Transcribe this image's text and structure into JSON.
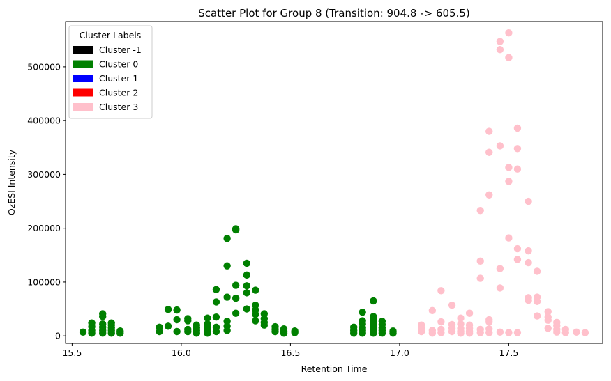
{
  "chart_data": {
    "type": "scatter",
    "title": "Scatter Plot for Group 8 (Transition: 904.8 -> 605.5)",
    "xlabel": "Retention Time",
    "ylabel": "OzESI Intensity",
    "xlim": [
      15.47,
      17.93
    ],
    "ylim": [
      -14000,
      584000
    ],
    "xticks": [
      15.5,
      16.0,
      16.5,
      17.0,
      17.5
    ],
    "xtick_labels": [
      "15.5",
      "16.0",
      "16.5",
      "17.0",
      "17.5"
    ],
    "yticks": [
      0,
      100000,
      200000,
      300000,
      400000,
      500000
    ],
    "ytick_labels": [
      "0",
      "100000",
      "200000",
      "300000",
      "400000",
      "500000"
    ],
    "grid": false,
    "legend": {
      "title": "Cluster Labels",
      "placement": "top-left",
      "entries": [
        {
          "label": "Cluster -1",
          "color": "#000000"
        },
        {
          "label": "Cluster 0",
          "color": "#008000"
        },
        {
          "label": "Cluster 1",
          "color": "#0000ff"
        },
        {
          "label": "Cluster 2",
          "color": "#ff0000"
        },
        {
          "label": "Cluster 3",
          "color": "#ffc0cb"
        }
      ]
    },
    "series": [
      {
        "color": "#008000",
        "points": [
          [
            15.55,
            7000
          ],
          [
            15.59,
            5000
          ],
          [
            15.59,
            10000
          ],
          [
            15.59,
            17000
          ],
          [
            15.59,
            24000
          ],
          [
            15.64,
            5000
          ],
          [
            15.64,
            10000
          ],
          [
            15.64,
            16000
          ],
          [
            15.64,
            22000
          ],
          [
            15.64,
            36000
          ],
          [
            15.64,
            41000
          ],
          [
            15.68,
            5000
          ],
          [
            15.68,
            10000
          ],
          [
            15.68,
            15000
          ],
          [
            15.68,
            20000
          ],
          [
            15.68,
            24000
          ],
          [
            15.72,
            5000
          ],
          [
            15.72,
            9000
          ],
          [
            15.9,
            8000
          ],
          [
            15.9,
            16000
          ],
          [
            15.94,
            18000
          ],
          [
            15.94,
            49000
          ],
          [
            15.98,
            8000
          ],
          [
            15.98,
            30000
          ],
          [
            15.98,
            48000
          ],
          [
            16.03,
            8000
          ],
          [
            16.03,
            12000
          ],
          [
            16.03,
            28000
          ],
          [
            16.03,
            32000
          ],
          [
            16.07,
            5000
          ],
          [
            16.07,
            10000
          ],
          [
            16.07,
            15000
          ],
          [
            16.07,
            20000
          ],
          [
            16.12,
            5000
          ],
          [
            16.12,
            10000
          ],
          [
            16.12,
            16000
          ],
          [
            16.12,
            22000
          ],
          [
            16.12,
            33000
          ],
          [
            16.16,
            8000
          ],
          [
            16.16,
            16000
          ],
          [
            16.16,
            35000
          ],
          [
            16.16,
            63000
          ],
          [
            16.16,
            86000
          ],
          [
            16.21,
            10000
          ],
          [
            16.21,
            18000
          ],
          [
            16.21,
            27000
          ],
          [
            16.21,
            72000
          ],
          [
            16.21,
            130000
          ],
          [
            16.21,
            181000
          ],
          [
            16.25,
            42000
          ],
          [
            16.25,
            70000
          ],
          [
            16.25,
            94000
          ],
          [
            16.25,
            197000
          ],
          [
            16.25,
            199000
          ],
          [
            16.3,
            50000
          ],
          [
            16.3,
            80000
          ],
          [
            16.3,
            93000
          ],
          [
            16.3,
            113000
          ],
          [
            16.3,
            135000
          ],
          [
            16.34,
            28000
          ],
          [
            16.34,
            40000
          ],
          [
            16.34,
            48000
          ],
          [
            16.34,
            57000
          ],
          [
            16.34,
            85000
          ],
          [
            16.38,
            20000
          ],
          [
            16.38,
            25000
          ],
          [
            16.38,
            32000
          ],
          [
            16.38,
            41000
          ],
          [
            16.43,
            8000
          ],
          [
            16.43,
            12000
          ],
          [
            16.43,
            17000
          ],
          [
            16.47,
            5000
          ],
          [
            16.47,
            9000
          ],
          [
            16.47,
            13000
          ],
          [
            16.52,
            6000
          ],
          [
            16.52,
            9000
          ],
          [
            16.79,
            5000
          ],
          [
            16.79,
            10000
          ],
          [
            16.79,
            16000
          ],
          [
            16.83,
            5000
          ],
          [
            16.83,
            10000
          ],
          [
            16.83,
            15000
          ],
          [
            16.83,
            22000
          ],
          [
            16.83,
            28000
          ],
          [
            16.83,
            44000
          ],
          [
            16.88,
            5000
          ],
          [
            16.88,
            10000
          ],
          [
            16.88,
            15000
          ],
          [
            16.88,
            20000
          ],
          [
            16.88,
            25000
          ],
          [
            16.88,
            30000
          ],
          [
            16.88,
            36000
          ],
          [
            16.88,
            65000
          ],
          [
            16.92,
            5000
          ],
          [
            16.92,
            10000
          ],
          [
            16.92,
            15000
          ],
          [
            16.92,
            21000
          ],
          [
            16.92,
            27000
          ],
          [
            16.97,
            5000
          ],
          [
            16.97,
            9000
          ]
        ]
      },
      {
        "color": "#ffc0cb",
        "points": [
          [
            17.1,
            8000
          ],
          [
            17.1,
            14000
          ],
          [
            17.1,
            20000
          ],
          [
            17.15,
            5000
          ],
          [
            17.15,
            10000
          ],
          [
            17.15,
            47000
          ],
          [
            17.19,
            6000
          ],
          [
            17.19,
            12000
          ],
          [
            17.19,
            26000
          ],
          [
            17.19,
            84000
          ],
          [
            17.24,
            8000
          ],
          [
            17.24,
            14000
          ],
          [
            17.24,
            21000
          ],
          [
            17.24,
            57000
          ],
          [
            17.28,
            5000
          ],
          [
            17.28,
            9000
          ],
          [
            17.28,
            14000
          ],
          [
            17.28,
            22000
          ],
          [
            17.28,
            33000
          ],
          [
            17.32,
            5000
          ],
          [
            17.32,
            9000
          ],
          [
            17.32,
            14000
          ],
          [
            17.32,
            20000
          ],
          [
            17.32,
            42000
          ],
          [
            17.37,
            6000
          ],
          [
            17.37,
            12000
          ],
          [
            17.37,
            107000
          ],
          [
            17.37,
            139000
          ],
          [
            17.37,
            233000
          ],
          [
            17.41,
            6000
          ],
          [
            17.41,
            13000
          ],
          [
            17.41,
            26000
          ],
          [
            17.41,
            30000
          ],
          [
            17.41,
            262000
          ],
          [
            17.41,
            341000
          ],
          [
            17.41,
            380000
          ],
          [
            17.46,
            7000
          ],
          [
            17.46,
            89000
          ],
          [
            17.46,
            125000
          ],
          [
            17.46,
            353000
          ],
          [
            17.46,
            532000
          ],
          [
            17.46,
            547000
          ],
          [
            17.5,
            6000
          ],
          [
            17.5,
            182000
          ],
          [
            17.5,
            287000
          ],
          [
            17.5,
            313000
          ],
          [
            17.5,
            517000
          ],
          [
            17.5,
            563000
          ],
          [
            17.54,
            6000
          ],
          [
            17.54,
            142000
          ],
          [
            17.54,
            162000
          ],
          [
            17.54,
            310000
          ],
          [
            17.54,
            348000
          ],
          [
            17.54,
            386000
          ],
          [
            17.59,
            66000
          ],
          [
            17.59,
            71000
          ],
          [
            17.59,
            136000
          ],
          [
            17.59,
            158000
          ],
          [
            17.59,
            250000
          ],
          [
            17.63,
            37000
          ],
          [
            17.63,
            64000
          ],
          [
            17.63,
            72000
          ],
          [
            17.63,
            120000
          ],
          [
            17.68,
            14000
          ],
          [
            17.68,
            29000
          ],
          [
            17.68,
            35000
          ],
          [
            17.68,
            45000
          ],
          [
            17.72,
            7000
          ],
          [
            17.72,
            12000
          ],
          [
            17.72,
            19000
          ],
          [
            17.72,
            25000
          ],
          [
            17.76,
            6000
          ],
          [
            17.76,
            12000
          ],
          [
            17.81,
            7000
          ],
          [
            17.85,
            6000
          ]
        ]
      }
    ]
  }
}
